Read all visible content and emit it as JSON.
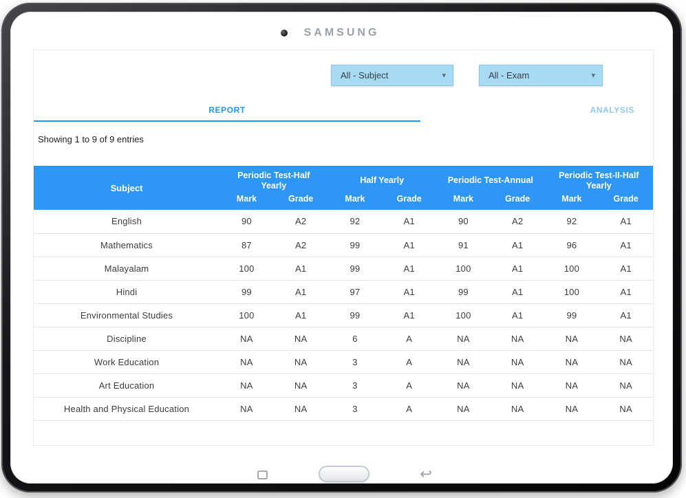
{
  "device": {
    "brand": "SAMSUNG"
  },
  "filters": {
    "subject": {
      "value": "All - Subject"
    },
    "exam": {
      "value": "All - Exam"
    }
  },
  "tabs": {
    "report": {
      "label": "REPORT",
      "active": true
    },
    "analysis": {
      "label": "ANALYSIS",
      "active": false
    }
  },
  "status_text": "Showing 1 to 9 of 9 entries",
  "icons": {
    "dropdown_caret": "▾",
    "back": "↩"
  },
  "table": {
    "subject_header": "Subject",
    "mark_label": "Mark",
    "grade_label": "Grade",
    "groups": [
      {
        "label": "Periodic Test-Half Yearly"
      },
      {
        "label": "Half Yearly"
      },
      {
        "label": "Periodic Test-Annual"
      },
      {
        "label": "Periodic Test-II-Half Yearly"
      }
    ],
    "rows": [
      {
        "subject": "English",
        "values": [
          "90",
          "A2",
          "92",
          "A1",
          "90",
          "A2",
          "92",
          "A1"
        ]
      },
      {
        "subject": "Mathematics",
        "values": [
          "87",
          "A2",
          "99",
          "A1",
          "91",
          "A1",
          "96",
          "A1"
        ]
      },
      {
        "subject": "Malayalam",
        "values": [
          "100",
          "A1",
          "99",
          "A1",
          "100",
          "A1",
          "100",
          "A1"
        ]
      },
      {
        "subject": "Hindi",
        "values": [
          "99",
          "A1",
          "97",
          "A1",
          "99",
          "A1",
          "100",
          "A1"
        ]
      },
      {
        "subject": "Environmental Studies",
        "values": [
          "100",
          "A1",
          "99",
          "A1",
          "100",
          "A1",
          "99",
          "A1"
        ]
      },
      {
        "subject": "Discipline",
        "values": [
          "NA",
          "NA",
          "6",
          "A",
          "NA",
          "NA",
          "NA",
          "NA"
        ]
      },
      {
        "subject": "Work Education",
        "values": [
          "NA",
          "NA",
          "3",
          "A",
          "NA",
          "NA",
          "NA",
          "NA"
        ]
      },
      {
        "subject": "Art Education",
        "values": [
          "NA",
          "NA",
          "3",
          "A",
          "NA",
          "NA",
          "NA",
          "NA"
        ]
      },
      {
        "subject": "Health and Physical Education",
        "values": [
          "NA",
          "NA",
          "3",
          "A",
          "NA",
          "NA",
          "NA",
          "NA"
        ]
      }
    ]
  },
  "colors": {
    "accent": "#2196f3",
    "table_header": "#2e96f5",
    "dropdown_bg": "#a9daf3",
    "inactive_tab": "#8fc9ef"
  }
}
